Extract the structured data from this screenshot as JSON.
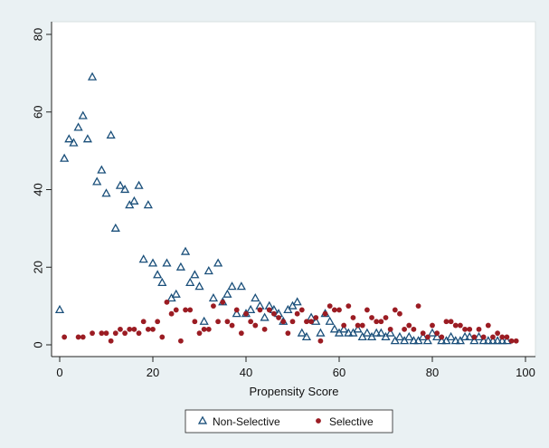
{
  "chart_data": {
    "type": "scatter",
    "title": "",
    "xlabel": "Propensity Score",
    "ylabel": "",
    "xlim": [
      0,
      100
    ],
    "ylim": [
      0,
      80
    ],
    "xticks": [
      0,
      20,
      40,
      60,
      80,
      100
    ],
    "yticks": [
      0,
      20,
      40,
      60,
      80
    ],
    "grid": false,
    "legend_position": "bottom",
    "series": [
      {
        "name": "Non-Selective",
        "marker": "hollow-triangle",
        "color": "#1a4f7a",
        "points": [
          [
            0,
            9
          ],
          [
            1,
            48
          ],
          [
            2,
            53
          ],
          [
            3,
            52
          ],
          [
            4,
            56
          ],
          [
            5,
            59
          ],
          [
            6,
            53
          ],
          [
            7,
            69
          ],
          [
            8,
            42
          ],
          [
            9,
            45
          ],
          [
            10,
            39
          ],
          [
            11,
            54
          ],
          [
            12,
            30
          ],
          [
            13,
            41
          ],
          [
            14,
            40
          ],
          [
            15,
            36
          ],
          [
            16,
            37
          ],
          [
            17,
            41
          ],
          [
            18,
            22
          ],
          [
            19,
            36
          ],
          [
            20,
            21
          ],
          [
            21,
            18
          ],
          [
            22,
            16
          ],
          [
            23,
            21
          ],
          [
            24,
            12
          ],
          [
            25,
            13
          ],
          [
            26,
            20
          ],
          [
            27,
            24
          ],
          [
            28,
            16
          ],
          [
            29,
            18
          ],
          [
            30,
            15
          ],
          [
            31,
            6
          ],
          [
            32,
            19
          ],
          [
            33,
            12
          ],
          [
            34,
            21
          ],
          [
            35,
            11
          ],
          [
            36,
            13
          ],
          [
            37,
            15
          ],
          [
            38,
            8
          ],
          [
            39,
            15
          ],
          [
            40,
            8
          ],
          [
            41,
            9
          ],
          [
            42,
            12
          ],
          [
            43,
            10
          ],
          [
            44,
            7
          ],
          [
            45,
            10
          ],
          [
            46,
            9
          ],
          [
            47,
            8
          ],
          [
            48,
            6
          ],
          [
            49,
            9
          ],
          [
            50,
            10
          ],
          [
            51,
            11
          ],
          [
            52,
            3
          ],
          [
            53,
            2
          ],
          [
            54,
            7
          ],
          [
            55,
            6
          ],
          [
            56,
            3
          ],
          [
            57,
            8
          ],
          [
            58,
            6
          ],
          [
            59,
            4
          ],
          [
            60,
            3
          ],
          [
            61,
            4
          ],
          [
            62,
            3
          ],
          [
            63,
            3
          ],
          [
            64,
            4
          ],
          [
            65,
            2
          ],
          [
            66,
            3
          ],
          [
            67,
            2
          ],
          [
            68,
            3
          ],
          [
            69,
            3
          ],
          [
            70,
            2
          ],
          [
            71,
            3
          ],
          [
            72,
            1
          ],
          [
            73,
            2
          ],
          [
            74,
            1
          ],
          [
            75,
            2
          ],
          [
            76,
            1
          ],
          [
            77,
            1
          ],
          [
            78,
            2
          ],
          [
            79,
            1
          ],
          [
            80,
            3
          ],
          [
            81,
            2
          ],
          [
            82,
            1
          ],
          [
            83,
            1
          ],
          [
            84,
            2
          ],
          [
            85,
            1
          ],
          [
            86,
            1
          ],
          [
            87,
            2
          ],
          [
            88,
            2
          ],
          [
            89,
            1
          ],
          [
            90,
            2
          ],
          [
            91,
            1
          ],
          [
            92,
            1
          ],
          [
            93,
            1
          ],
          [
            94,
            1
          ],
          [
            95,
            1
          ],
          [
            96,
            1
          ]
        ]
      },
      {
        "name": "Selective",
        "marker": "filled-circle",
        "color": "#9b1c23",
        "points": [
          [
            1,
            2
          ],
          [
            4,
            2
          ],
          [
            5,
            2
          ],
          [
            7,
            3
          ],
          [
            9,
            3
          ],
          [
            10,
            3
          ],
          [
            11,
            1
          ],
          [
            12,
            3
          ],
          [
            13,
            4
          ],
          [
            14,
            3
          ],
          [
            15,
            4
          ],
          [
            16,
            4
          ],
          [
            17,
            3
          ],
          [
            18,
            6
          ],
          [
            19,
            4
          ],
          [
            20,
            4
          ],
          [
            21,
            6
          ],
          [
            22,
            2
          ],
          [
            23,
            11
          ],
          [
            24,
            8
          ],
          [
            25,
            9
          ],
          [
            26,
            1
          ],
          [
            27,
            9
          ],
          [
            28,
            9
          ],
          [
            29,
            6
          ],
          [
            30,
            3
          ],
          [
            31,
            4
          ],
          [
            32,
            4
          ],
          [
            33,
            10
          ],
          [
            34,
            6
          ],
          [
            35,
            11
          ],
          [
            36,
            6
          ],
          [
            37,
            5
          ],
          [
            38,
            9
          ],
          [
            39,
            3
          ],
          [
            40,
            8
          ],
          [
            41,
            6
          ],
          [
            42,
            5
          ],
          [
            43,
            9
          ],
          [
            44,
            4
          ],
          [
            45,
            9
          ],
          [
            46,
            8
          ],
          [
            47,
            7
          ],
          [
            48,
            6
          ],
          [
            49,
            3
          ],
          [
            50,
            6
          ],
          [
            51,
            8
          ],
          [
            52,
            9
          ],
          [
            53,
            6
          ],
          [
            54,
            6
          ],
          [
            55,
            7
          ],
          [
            56,
            1
          ],
          [
            57,
            8
          ],
          [
            58,
            10
          ],
          [
            59,
            9
          ],
          [
            60,
            9
          ],
          [
            61,
            5
          ],
          [
            62,
            10
          ],
          [
            63,
            7
          ],
          [
            64,
            5
          ],
          [
            65,
            5
          ],
          [
            66,
            9
          ],
          [
            67,
            7
          ],
          [
            68,
            6
          ],
          [
            69,
            6
          ],
          [
            70,
            7
          ],
          [
            71,
            4
          ],
          [
            72,
            9
          ],
          [
            73,
            8
          ],
          [
            74,
            4
          ],
          [
            75,
            5
          ],
          [
            76,
            4
          ],
          [
            77,
            10
          ],
          [
            78,
            3
          ],
          [
            79,
            2
          ],
          [
            80,
            5
          ],
          [
            81,
            3
          ],
          [
            82,
            2
          ],
          [
            83,
            6
          ],
          [
            84,
            6
          ],
          [
            85,
            5
          ],
          [
            86,
            5
          ],
          [
            87,
            4
          ],
          [
            88,
            4
          ],
          [
            89,
            2
          ],
          [
            90,
            4
          ],
          [
            91,
            2
          ],
          [
            92,
            5
          ],
          [
            93,
            2
          ],
          [
            94,
            3
          ],
          [
            95,
            2
          ],
          [
            96,
            2
          ],
          [
            97,
            1
          ],
          [
            98,
            1
          ]
        ]
      }
    ]
  }
}
